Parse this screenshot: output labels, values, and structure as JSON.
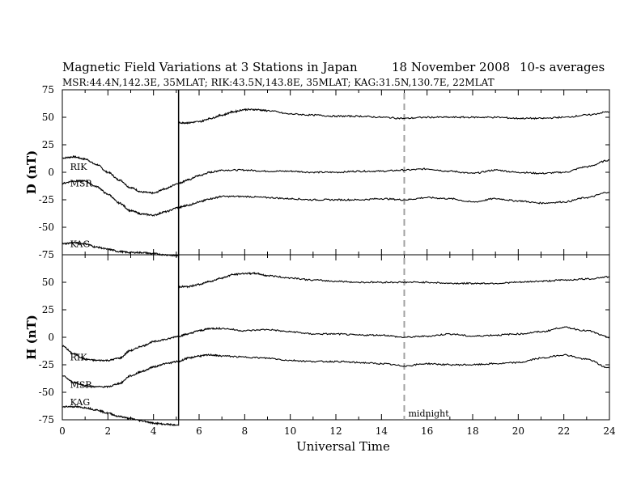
{
  "header": {
    "title": "Magnetic Field Variations at 3 Stations in Japan",
    "date": "18 November 2008",
    "averaging": "10-s averages",
    "stations_line": "MSR:44.4N,142.3E, 35MLAT;  RIK:43.5N,143.8E, 35MLAT;  KAG:31.5N,130.7E, 22MLAT"
  },
  "chart_data": [
    {
      "type": "line",
      "panel": "D",
      "ylabel": "D (nT)",
      "xlabel": "Universal Time",
      "xlim": [
        0,
        24
      ],
      "ylim": [
        -75,
        75
      ],
      "yticks": [
        75,
        50,
        25,
        0,
        -25,
        -50,
        -75
      ],
      "xticks": [
        0,
        2,
        4,
        6,
        8,
        10,
        12,
        14,
        16,
        18,
        20,
        22,
        24
      ],
      "vertical_marker": {
        "x": 15,
        "style": "dashed",
        "color": "#a0a0a0"
      },
      "event_line": {
        "x": 5.1
      },
      "series": [
        {
          "name": "RIK",
          "label_at": [
            0.2,
            5
          ],
          "points": [
            [
              0,
              13
            ],
            [
              0.5,
              14
            ],
            [
              1,
              12
            ],
            [
              1.5,
              7
            ],
            [
              2,
              0
            ],
            [
              2.5,
              -7
            ],
            [
              3,
              -14
            ],
            [
              3.5,
              -18
            ],
            [
              4,
              -19
            ],
            [
              4.5,
              -15
            ],
            [
              5.1,
              -10
            ],
            [
              5.5,
              -7
            ],
            [
              6,
              -3
            ],
            [
              6.5,
              0
            ],
            [
              7,
              2
            ],
            [
              8,
              2
            ],
            [
              9,
              1
            ],
            [
              10,
              1
            ],
            [
              11,
              0
            ],
            [
              12,
              0
            ],
            [
              13,
              1
            ],
            [
              14,
              1
            ],
            [
              15,
              2
            ],
            [
              16,
              3
            ],
            [
              17,
              1
            ],
            [
              18,
              -1
            ],
            [
              19,
              2
            ],
            [
              20,
              0
            ],
            [
              21,
              -1
            ],
            [
              22,
              0
            ],
            [
              23,
              5
            ],
            [
              24,
              11
            ]
          ]
        },
        {
          "name": "MSR",
          "label_at": [
            0.2,
            -10
          ],
          "points": [
            [
              0,
              -10
            ],
            [
              0.5,
              -8
            ],
            [
              1,
              -8
            ],
            [
              1.5,
              -13
            ],
            [
              2,
              -20
            ],
            [
              2.5,
              -28
            ],
            [
              3,
              -35
            ],
            [
              3.5,
              -38
            ],
            [
              4,
              -39
            ],
            [
              4.5,
              -36
            ],
            [
              5.1,
              -32
            ],
            [
              5.5,
              -30
            ],
            [
              6,
              -27
            ],
            [
              6.5,
              -24
            ],
            [
              7,
              -22
            ],
            [
              8,
              -22
            ],
            [
              9,
              -23
            ],
            [
              10,
              -24
            ],
            [
              11,
              -25
            ],
            [
              12,
              -25
            ],
            [
              13,
              -25
            ],
            [
              14,
              -24
            ],
            [
              15,
              -25
            ],
            [
              16,
              -23
            ],
            [
              17,
              -24
            ],
            [
              18,
              -27
            ],
            [
              19,
              -24
            ],
            [
              20,
              -26
            ],
            [
              21,
              -28
            ],
            [
              22,
              -27
            ],
            [
              23,
              -23
            ],
            [
              24,
              -18
            ]
          ]
        },
        {
          "name": "KAG",
          "label_at": [
            0.2,
            -65
          ],
          "points": [
            [
              0,
              -65
            ],
            [
              0.5,
              -64
            ],
            [
              1,
              -65
            ],
            [
              1.5,
              -68
            ],
            [
              2,
              -70
            ],
            [
              2.5,
              -72
            ],
            [
              3,
              -73
            ],
            [
              3.5,
              -73
            ],
            [
              4,
              -74
            ],
            [
              4.5,
              -75
            ],
            [
              5.1,
              -76
            ],
            [
              5.1,
              45
            ],
            [
              5.5,
              45
            ],
            [
              6,
              46
            ],
            [
              6.5,
              49
            ],
            [
              7,
              52
            ],
            [
              7.5,
              55
            ],
            [
              8,
              57
            ],
            [
              8.5,
              57
            ],
            [
              9,
              56
            ],
            [
              10,
              53
            ],
            [
              11,
              52
            ],
            [
              12,
              51
            ],
            [
              13,
              51
            ],
            [
              14,
              50
            ],
            [
              15,
              49
            ],
            [
              16,
              50
            ],
            [
              17,
              50
            ],
            [
              18,
              50
            ],
            [
              19,
              50
            ],
            [
              20,
              49
            ],
            [
              21,
              49
            ],
            [
              22,
              50
            ],
            [
              23,
              52
            ],
            [
              24,
              55
            ]
          ]
        }
      ]
    },
    {
      "type": "line",
      "panel": "H",
      "ylabel": "H (nT)",
      "xlabel": "Universal Time",
      "xlim": [
        0,
        24
      ],
      "ylim": [
        -75,
        75
      ],
      "yticks": [
        75,
        50,
        25,
        0,
        -25,
        -50,
        -75
      ],
      "xticks": [
        0,
        2,
        4,
        6,
        8,
        10,
        12,
        14,
        16,
        18,
        20,
        22,
        24
      ],
      "vertical_marker": {
        "x": 15,
        "style": "dashed",
        "color": "#a0a0a0",
        "label": "midnight"
      },
      "event_line": {
        "x": 5.1
      },
      "series": [
        {
          "name": "RIK",
          "label_at": [
            0.2,
            -18
          ],
          "points": [
            [
              0,
              -8
            ],
            [
              0.5,
              -15
            ],
            [
              1,
              -20
            ],
            [
              1.5,
              -21
            ],
            [
              2,
              -21
            ],
            [
              2.5,
              -19
            ],
            [
              3,
              -12
            ],
            [
              3.5,
              -8
            ],
            [
              4,
              -4
            ],
            [
              4.5,
              -2
            ],
            [
              5.1,
              1
            ],
            [
              5.5,
              3
            ],
            [
              6,
              6
            ],
            [
              6.5,
              8
            ],
            [
              7,
              8
            ],
            [
              8,
              6
            ],
            [
              9,
              7
            ],
            [
              10,
              5
            ],
            [
              11,
              3
            ],
            [
              12,
              3
            ],
            [
              13,
              2
            ],
            [
              14,
              2
            ],
            [
              15,
              0
            ],
            [
              16,
              1
            ],
            [
              17,
              3
            ],
            [
              18,
              1
            ],
            [
              19,
              2
            ],
            [
              20,
              3
            ],
            [
              21,
              5
            ],
            [
              22,
              9
            ],
            [
              23,
              6
            ],
            [
              24,
              0
            ]
          ]
        },
        {
          "name": "MSR",
          "label_at": [
            0.2,
            -43
          ],
          "points": [
            [
              0,
              -35
            ],
            [
              0.5,
              -41
            ],
            [
              1,
              -44
            ],
            [
              1.5,
              -45
            ],
            [
              2,
              -45
            ],
            [
              2.5,
              -42
            ],
            [
              3,
              -35
            ],
            [
              3.5,
              -31
            ],
            [
              4,
              -27
            ],
            [
              4.5,
              -24
            ],
            [
              5.1,
              -22
            ],
            [
              5.5,
              -19
            ],
            [
              6,
              -17
            ],
            [
              6.5,
              -16
            ],
            [
              7,
              -17
            ],
            [
              8,
              -18
            ],
            [
              9,
              -19
            ],
            [
              10,
              -21
            ],
            [
              11,
              -22
            ],
            [
              12,
              -22
            ],
            [
              13,
              -23
            ],
            [
              14,
              -24
            ],
            [
              15,
              -26
            ],
            [
              16,
              -24
            ],
            [
              17,
              -25
            ],
            [
              18,
              -25
            ],
            [
              19,
              -24
            ],
            [
              20,
              -23
            ],
            [
              21,
              -19
            ],
            [
              22,
              -16
            ],
            [
              23,
              -20
            ],
            [
              24,
              -28
            ]
          ]
        },
        {
          "name": "KAG",
          "label_at": [
            0.2,
            -59
          ],
          "points": [
            [
              0,
              -63
            ],
            [
              0.5,
              -63
            ],
            [
              1,
              -64
            ],
            [
              1.5,
              -66
            ],
            [
              2,
              -69
            ],
            [
              2.5,
              -72
            ],
            [
              3,
              -74
            ],
            [
              3.5,
              -76
            ],
            [
              4,
              -78
            ],
            [
              4.5,
              -79
            ],
            [
              5.1,
              -80
            ],
            [
              5.1,
              46
            ],
            [
              5.5,
              46
            ],
            [
              6,
              48
            ],
            [
              6.5,
              51
            ],
            [
              7,
              54
            ],
            [
              7.5,
              57
            ],
            [
              8,
              58
            ],
            [
              8.5,
              58
            ],
            [
              9,
              56
            ],
            [
              10,
              54
            ],
            [
              11,
              52
            ],
            [
              12,
              51
            ],
            [
              13,
              50
            ],
            [
              14,
              50
            ],
            [
              15,
              50
            ],
            [
              16,
              50
            ],
            [
              17,
              49
            ],
            [
              18,
              49
            ],
            [
              19,
              49
            ],
            [
              20,
              50
            ],
            [
              21,
              51
            ],
            [
              22,
              52
            ],
            [
              23,
              53
            ],
            [
              24,
              55
            ]
          ]
        }
      ]
    }
  ]
}
